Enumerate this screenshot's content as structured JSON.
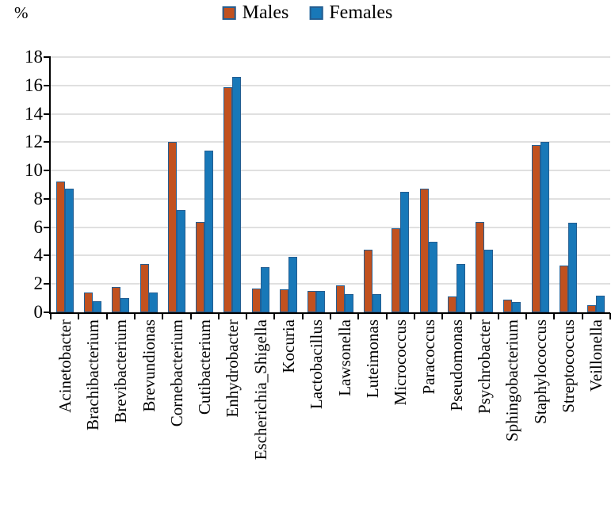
{
  "chart_data": {
    "type": "bar",
    "title": "",
    "ylabel": "%",
    "xlabel": "",
    "ylim": [
      0,
      18
    ],
    "yticks": [
      0,
      2,
      4,
      6,
      8,
      10,
      12,
      14,
      16,
      18
    ],
    "grid": true,
    "legend_position": "top-center",
    "categories": [
      "Acinetobacter",
      "Brachibacterium",
      "Brevibacterium",
      "Brevundionas",
      "Cornebacterium",
      "Cutibacterium",
      "Enhydrobacter",
      "Escherichia_Shigella",
      "Kocuria",
      "Lactobacillus",
      "Lawsonella",
      "Luteimonas",
      "Micrococcus",
      "Paracoccus",
      "Pseudomonas",
      "Psychrobacter",
      "Sphingobacterium",
      "Staphylococcus",
      "Streptococcus",
      "Veillonella"
    ],
    "series": [
      {
        "name": "Males",
        "color": "#C1511F",
        "values": [
          9.2,
          1.4,
          1.8,
          3.4,
          12.0,
          6.4,
          15.9,
          1.7,
          1.6,
          1.5,
          1.9,
          4.4,
          5.9,
          8.7,
          1.1,
          6.4,
          0.9,
          11.8,
          3.3,
          0.5
        ]
      },
      {
        "name": "Females",
        "color": "#1878B8",
        "values": [
          8.7,
          0.8,
          1.0,
          1.4,
          7.2,
          11.4,
          16.6,
          3.2,
          3.9,
          1.5,
          1.3,
          1.3,
          8.5,
          5.0,
          3.4,
          4.4,
          0.7,
          12.0,
          6.3,
          1.2
        ]
      }
    ],
    "colors": {
      "bar_outline": "#255E91",
      "gridline": "#E0E0E0",
      "axis": "#000000",
      "text": "#000000"
    }
  }
}
